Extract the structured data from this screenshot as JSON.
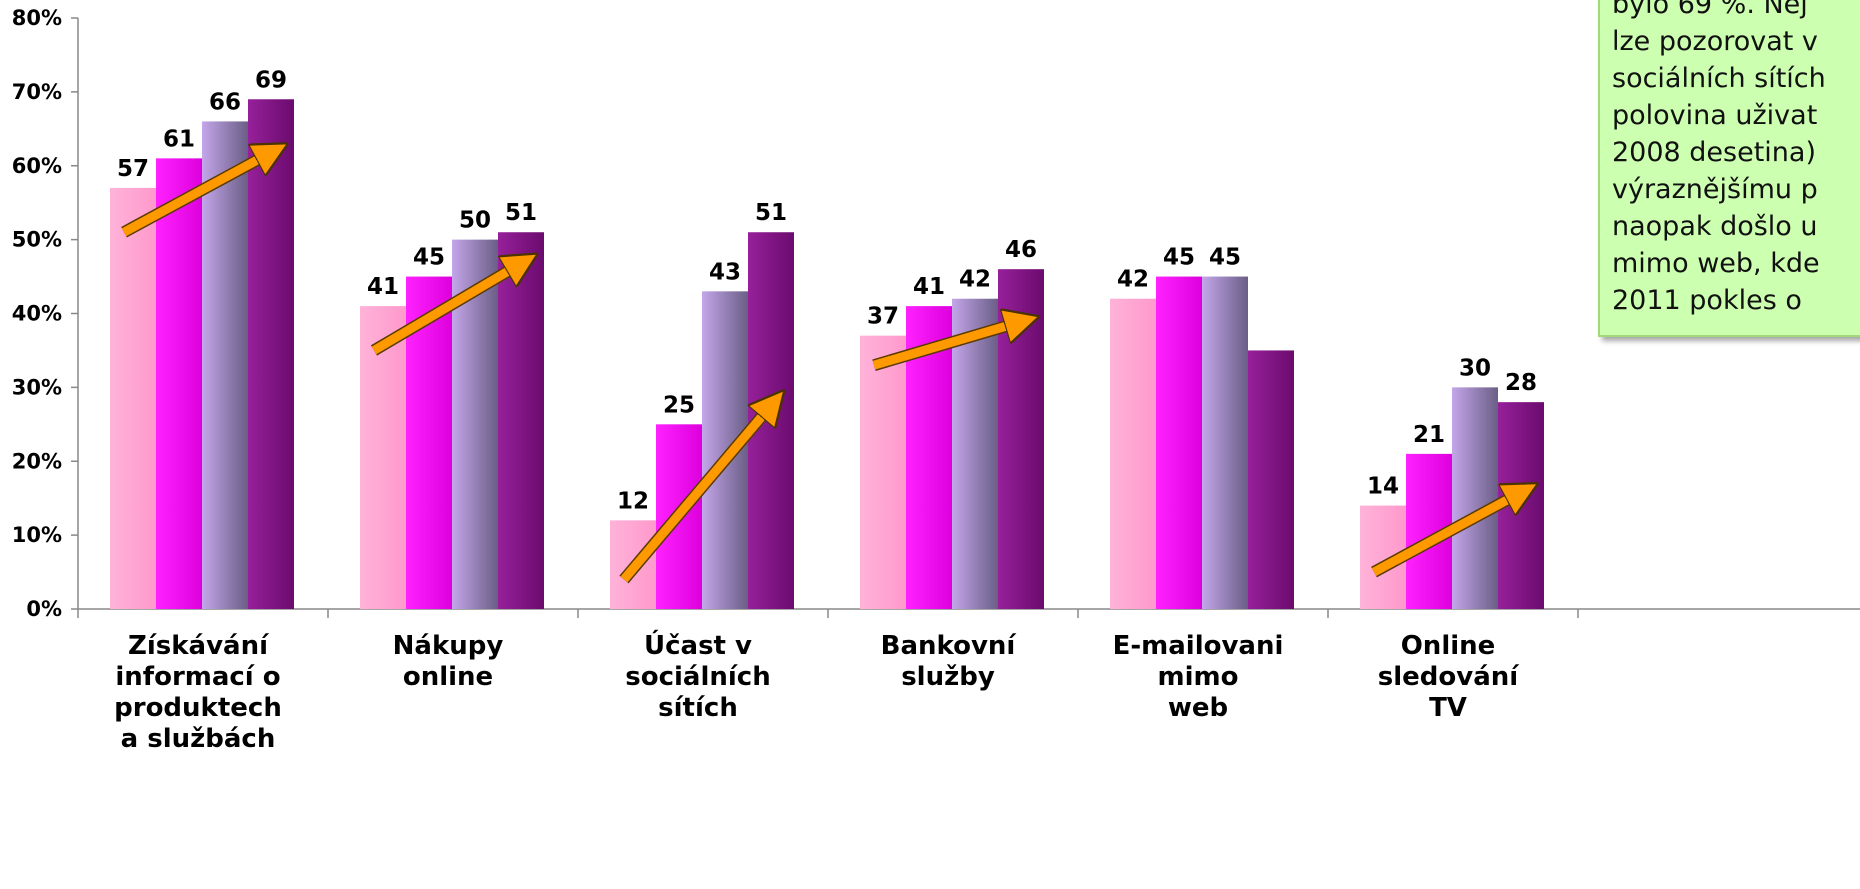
{
  "chart_data": {
    "type": "bar",
    "title": "",
    "xlabel": "",
    "ylabel": "",
    "ylim": [
      0,
      80
    ],
    "y_tick_labels": [
      "0%",
      "10%",
      "20%",
      "30%",
      "40%",
      "50%",
      "60%",
      "70%",
      "80%"
    ],
    "y_ticks": [
      0,
      10,
      20,
      30,
      40,
      50,
      60,
      70,
      80
    ],
    "grid": false,
    "legend": "none",
    "categories": [
      "Získávání informací o produktech a službách",
      "Nákupy online",
      "Účast v sociálních sítích",
      "Bankovní služby",
      "E-mailovani mimo web",
      "Online sledování TV"
    ],
    "category_label_lines": [
      [
        "Získávání",
        "informací o",
        "produktech",
        " a službách"
      ],
      [
        "Nákupy",
        "online"
      ],
      [
        "Účast v",
        "sociálních",
        "sítích"
      ],
      [
        "Bankovní",
        "služby"
      ],
      [
        "E-mailovani",
        "mimo",
        "web"
      ],
      [
        "Online",
        "sledování",
        "TV"
      ]
    ],
    "series": [
      {
        "color": "#ff99cc",
        "values": [
          57,
          41,
          12,
          37,
          42,
          14
        ]
      },
      {
        "color": "#ee00ee",
        "values": [
          61,
          45,
          25,
          41,
          45,
          21
        ]
      },
      {
        "color": "#a07ec4",
        "values": [
          66,
          50,
          43,
          42,
          45,
          30
        ]
      },
      {
        "color": "#7a0f7a",
        "values": [
          69,
          51,
          51,
          46,
          35,
          28
        ]
      }
    ],
    "data_labels_shown": [
      [
        true,
        true,
        true,
        true
      ],
      [
        true,
        true,
        true,
        true
      ],
      [
        true,
        true,
        true,
        true
      ],
      [
        true,
        true,
        true,
        true
      ],
      [
        true,
        true,
        true,
        false
      ],
      [
        true,
        true,
        true,
        true
      ]
    ],
    "trend_arrows": [
      {
        "category": 0,
        "from_value": 51,
        "to_value": 62
      },
      {
        "category": 1,
        "from_value": 35,
        "to_value": 47
      },
      {
        "category": 2,
        "from_value": 4,
        "to_value": 28
      },
      {
        "category": 3,
        "from_value": 33,
        "to_value": 39
      },
      {
        "category": 5,
        "from_value": 5,
        "to_value": 16
      }
    ],
    "arrow_color": "#ff9900"
  },
  "callout": {
    "lines": [
      "bylo 69 %. Nej",
      "lze pozorovat v",
      "sociálních sítích",
      "polovina uživat",
      "2008 desetina)",
      "výraznějšímu p",
      "naopak došlo u",
      "mimo web, kde",
      "2011 pokles o"
    ]
  }
}
